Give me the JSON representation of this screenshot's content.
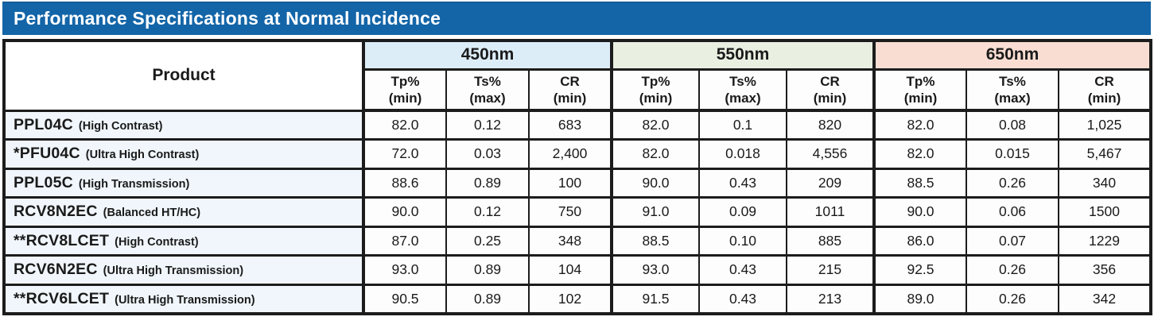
{
  "title": "Performance Specifications at Normal Incidence",
  "colors": {
    "title_bg": "#1365a8",
    "title_text": "#ffffff",
    "border": "#1c1c1c",
    "group_450_bg": "#ddedf8",
    "group_550_bg": "#e9f0e1",
    "group_650_bg": "#f9ddd2",
    "product_cell_bg": "#f0f6fb",
    "data_cell_bg": "#fdfdfd"
  },
  "table": {
    "product_header": "Product",
    "wavelength_groups": [
      {
        "label": "450nm",
        "bg": "#ddedf8"
      },
      {
        "label": "550nm",
        "bg": "#e9f0e1"
      },
      {
        "label": "650nm",
        "bg": "#f9ddd2"
      }
    ],
    "metric_headers": [
      {
        "line1": "Tp%",
        "line2": "(min)"
      },
      {
        "line1": "Ts%",
        "line2": "(max)"
      },
      {
        "line1": "CR",
        "line2": "(min)"
      }
    ],
    "rows": [
      {
        "name": "PPL04C",
        "desc": "(High Contrast)",
        "values": [
          "82.0",
          "0.12",
          "683",
          "82.0",
          "0.1",
          "820",
          "82.0",
          "0.08",
          "1,025"
        ]
      },
      {
        "name": "*PFU04C",
        "desc": "(Ultra High Contrast)",
        "values": [
          "72.0",
          "0.03",
          "2,400",
          "82.0",
          "0.018",
          "4,556",
          "82.0",
          "0.015",
          "5,467"
        ]
      },
      {
        "name": "PPL05C",
        "desc": "(High Transmission)",
        "values": [
          "88.6",
          "0.89",
          "100",
          "90.0",
          "0.43",
          "209",
          "88.5",
          "0.26",
          "340"
        ]
      },
      {
        "name": "RCV8N2EC",
        "desc": "(Balanced HT/HC)",
        "values": [
          "90.0",
          "0.12",
          "750",
          "91.0",
          "0.09",
          "1011",
          "90.0",
          "0.06",
          "1500"
        ]
      },
      {
        "name": "**RCV8LCET",
        "desc": "(High Contrast)",
        "values": [
          "87.0",
          "0.25",
          "348",
          "88.5",
          "0.10",
          "885",
          "86.0",
          "0.07",
          "1229"
        ]
      },
      {
        "name": "RCV6N2EC",
        "desc": "(Ultra High Transmission)",
        "values": [
          "93.0",
          "0.89",
          "104",
          "93.0",
          "0.43",
          "215",
          "92.5",
          "0.26",
          "356"
        ]
      },
      {
        "name": "**RCV6LCET",
        "desc": "(Ultra High Transmission)",
        "values": [
          "90.5",
          "0.89",
          "102",
          "91.5",
          "0.43",
          "213",
          "89.0",
          "0.26",
          "342"
        ]
      }
    ]
  }
}
